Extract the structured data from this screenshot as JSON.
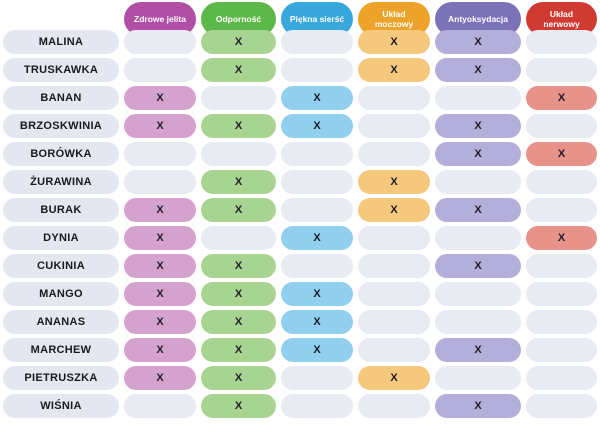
{
  "mark_symbol": "X",
  "colors": {
    "empty_cell": "#e9ebf3",
    "row_label_pill": "#e4e7f0",
    "mark_text": "#1d1d27",
    "header_text": "#ffffff"
  },
  "columns": [
    {
      "id": "zdrowe-jelita",
      "label": "Zdrowe jelita",
      "header_color": "#b04fa5",
      "cell_color": "#d5a2cf"
    },
    {
      "id": "odpornosc",
      "label": "Odporność",
      "header_color": "#5cb848",
      "cell_color": "#a8d492"
    },
    {
      "id": "piekna-siersc",
      "label": "Piękna sierść",
      "header_color": "#38a8dc",
      "cell_color": "#90d0ee"
    },
    {
      "id": "uklad-moczowy",
      "label": "Układ moczowy",
      "header_color": "#eda22a",
      "cell_color": "#f5c87d"
    },
    {
      "id": "antyoksydacja",
      "label": "Antyoksydacja",
      "header_color": "#7b72b8",
      "cell_color": "#b4aeda"
    },
    {
      "id": "uklad-nerwowy",
      "label": "Układ nerwowy",
      "header_color": "#cf3a33",
      "cell_color": "#e7938a"
    }
  ],
  "rows": [
    {
      "label": "MALINA",
      "marks": [
        0,
        1,
        0,
        1,
        1,
        0
      ]
    },
    {
      "label": "TRUSKAWKA",
      "marks": [
        0,
        1,
        0,
        1,
        1,
        0
      ]
    },
    {
      "label": "BANAN",
      "marks": [
        1,
        0,
        1,
        0,
        0,
        1
      ]
    },
    {
      "label": "BRZOSKWINIA",
      "marks": [
        1,
        1,
        1,
        0,
        1,
        0
      ]
    },
    {
      "label": "BORÓWKA",
      "marks": [
        0,
        0,
        0,
        0,
        1,
        1
      ]
    },
    {
      "label": "ŻURAWINA",
      "marks": [
        0,
        1,
        0,
        1,
        0,
        0
      ]
    },
    {
      "label": "BURAK",
      "marks": [
        1,
        1,
        0,
        1,
        1,
        0
      ]
    },
    {
      "label": "DYNIA",
      "marks": [
        1,
        0,
        1,
        0,
        0,
        1
      ]
    },
    {
      "label": "CUKINIA",
      "marks": [
        1,
        1,
        0,
        0,
        1,
        0
      ]
    },
    {
      "label": "MANGO",
      "marks": [
        1,
        1,
        1,
        0,
        0,
        0
      ]
    },
    {
      "label": "ANANAS",
      "marks": [
        1,
        1,
        1,
        0,
        0,
        0
      ]
    },
    {
      "label": "MARCHEW",
      "marks": [
        1,
        1,
        1,
        0,
        1,
        0
      ]
    },
    {
      "label": "PIETRUSZKA",
      "marks": [
        1,
        1,
        0,
        1,
        0,
        0
      ]
    },
    {
      "label": "WIŚNIA",
      "marks": [
        0,
        1,
        0,
        0,
        1,
        0
      ]
    }
  ],
  "chart_data": {
    "type": "table",
    "title": "",
    "columns": [
      "Zdrowe jelita",
      "Odporność",
      "Piękna sierść",
      "Układ moczowy",
      "Antyoksydacja",
      "Układ nerwowy"
    ],
    "row_labels": [
      "MALINA",
      "TRUSKAWKA",
      "BANAN",
      "BRZOSKWINIA",
      "BORÓWKA",
      "ŻURAWINA",
      "BURAK",
      "DYNIA",
      "CUKINIA",
      "MANGO",
      "ANANAS",
      "MARCHEW",
      "PIETRUSZKA",
      "WIŚNIA"
    ],
    "matrix": [
      [
        0,
        1,
        0,
        1,
        1,
        0
      ],
      [
        0,
        1,
        0,
        1,
        1,
        0
      ],
      [
        1,
        0,
        1,
        0,
        0,
        1
      ],
      [
        1,
        1,
        1,
        0,
        1,
        0
      ],
      [
        0,
        0,
        0,
        0,
        1,
        1
      ],
      [
        0,
        1,
        0,
        1,
        0,
        0
      ],
      [
        1,
        1,
        0,
        1,
        1,
        0
      ],
      [
        1,
        0,
        1,
        0,
        0,
        1
      ],
      [
        1,
        1,
        0,
        0,
        1,
        0
      ],
      [
        1,
        1,
        1,
        0,
        0,
        0
      ],
      [
        1,
        1,
        1,
        0,
        0,
        0
      ],
      [
        1,
        1,
        1,
        0,
        1,
        0
      ],
      [
        1,
        1,
        0,
        1,
        0,
        0
      ],
      [
        0,
        1,
        0,
        0,
        1,
        0
      ]
    ],
    "mark_symbol": "X",
    "legend_position": "none",
    "grid": false
  }
}
